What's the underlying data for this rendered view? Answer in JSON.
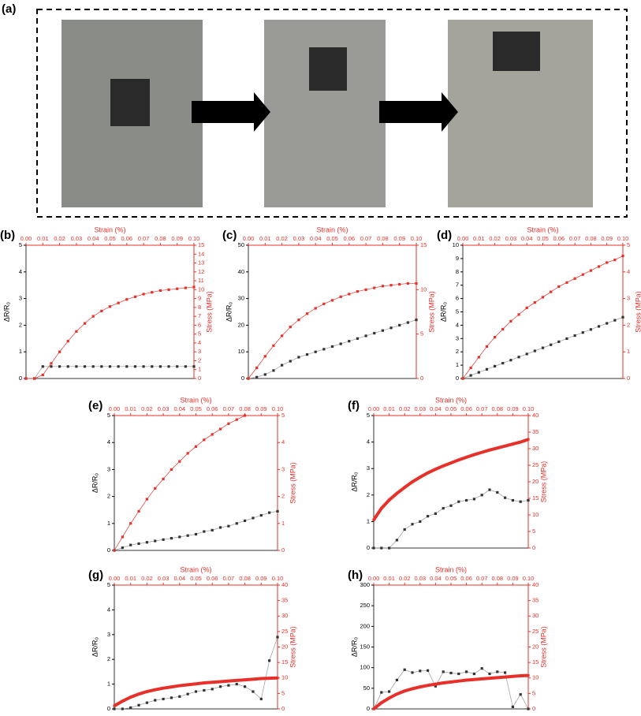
{
  "figure_label": "(a)",
  "chart_data": [
    {
      "type": "line",
      "panel_label": "(b)",
      "xlabel": "Strain (%)",
      "ylabel": "ΔR/R₀",
      "y2label": "Stress (MPa)",
      "x": [
        0,
        0.005,
        0.01,
        0.015,
        0.02,
        0.025,
        0.03,
        0.035,
        0.04,
        0.045,
        0.05,
        0.055,
        0.06,
        0.065,
        0.07,
        0.075,
        0.08,
        0.085,
        0.09,
        0.095,
        0.1
      ],
      "xlim": [
        0,
        0.1
      ],
      "xticks": [
        {
          "value": 0,
          "label": "0.00"
        },
        {
          "value": 0.01,
          "label": "0.01"
        },
        {
          "value": 0.02,
          "label": "0.02"
        },
        {
          "value": 0.03,
          "label": "0.03"
        },
        {
          "value": 0.04,
          "label": "0.04"
        },
        {
          "value": 0.05,
          "label": "0.05"
        },
        {
          "value": 0.06,
          "label": "0.06"
        },
        {
          "value": 0.07,
          "label": "0.07"
        },
        {
          "value": 0.08,
          "label": "0.08"
        },
        {
          "value": 0.09,
          "label": "0.09"
        },
        {
          "value": 0.1,
          "label": "0.10"
        }
      ],
      "ylim": [
        0,
        5
      ],
      "yticks": [
        0,
        1,
        2,
        3,
        4,
        5
      ],
      "y2lim": [
        0,
        15
      ],
      "y2ticks": [
        0,
        1,
        2,
        3,
        4,
        5,
        6,
        7,
        8,
        9,
        10,
        11,
        12,
        13,
        14,
        15
      ],
      "series": [
        {
          "color": "#333333",
          "values": [
            0,
            0,
            0.45,
            0.45,
            0.45,
            0.45,
            0.45,
            0.45,
            0.45,
            0.45,
            0.45,
            0.45,
            0.45,
            0.45,
            0.45,
            0.45,
            0.45,
            0.45,
            0.45,
            0.45,
            0.45
          ]
        },
        {
          "color": "#e8302a",
          "axis": "y2",
          "values": [
            0,
            0,
            0.4,
            1.7,
            3.0,
            4.2,
            5.3,
            6.2,
            7.0,
            7.6,
            8.1,
            8.5,
            8.9,
            9.2,
            9.5,
            9.7,
            9.9,
            10.0,
            10.1,
            10.2,
            10.3
          ]
        }
      ]
    },
    {
      "type": "line",
      "panel_label": "(c)",
      "xlabel": "Strain (%)",
      "ylabel": "ΔR/R₀",
      "y2label": "Stress (MPa)",
      "x": [
        0,
        0.005,
        0.01,
        0.015,
        0.02,
        0.025,
        0.03,
        0.035,
        0.04,
        0.045,
        0.05,
        0.055,
        0.06,
        0.065,
        0.07,
        0.075,
        0.08,
        0.085,
        0.09,
        0.095,
        0.1
      ],
      "xlim": [
        0,
        0.1
      ],
      "xticks": [
        {
          "value": 0,
          "label": "0.00"
        },
        {
          "value": 0.01,
          "label": "0.01"
        },
        {
          "value": 0.02,
          "label": "0.02"
        },
        {
          "value": 0.03,
          "label": "0.03"
        },
        {
          "value": 0.04,
          "label": "0.04"
        },
        {
          "value": 0.05,
          "label": "0.05"
        },
        {
          "value": 0.06,
          "label": "0.06"
        },
        {
          "value": 0.07,
          "label": "0.07"
        },
        {
          "value": 0.08,
          "label": "0.08"
        },
        {
          "value": 0.09,
          "label": "0.09"
        },
        {
          "value": 0.1,
          "label": "0.10"
        }
      ],
      "ylim": [
        0,
        50
      ],
      "yticks": [
        0,
        10,
        20,
        30,
        40,
        50
      ],
      "y2lim": [
        0,
        15
      ],
      "y2ticks": [
        0,
        5,
        10,
        15
      ],
      "series": [
        {
          "color": "#333333",
          "values": [
            0,
            0.5,
            1.5,
            3,
            5,
            6.5,
            8,
            9,
            10,
            11,
            12,
            13,
            14,
            15,
            16,
            17,
            18,
            19,
            20,
            21,
            22
          ]
        },
        {
          "color": "#e8302a",
          "axis": "y2",
          "values": [
            0,
            1.2,
            2.5,
            3.7,
            4.8,
            5.8,
            6.6,
            7.3,
            7.9,
            8.4,
            8.8,
            9.2,
            9.5,
            9.8,
            10.0,
            10.2,
            10.4,
            10.5,
            10.6,
            10.7,
            10.7
          ]
        }
      ]
    },
    {
      "type": "line",
      "panel_label": "(d)",
      "xlabel": "Strain (%)",
      "ylabel": "ΔR/R₀",
      "y2label": "Stress (MPa)",
      "x": [
        0,
        0.005,
        0.01,
        0.015,
        0.02,
        0.025,
        0.03,
        0.035,
        0.04,
        0.045,
        0.05,
        0.055,
        0.06,
        0.065,
        0.07,
        0.075,
        0.08,
        0.085,
        0.09,
        0.095,
        0.1
      ],
      "xlim": [
        0,
        0.1
      ],
      "xticks": [
        {
          "value": 0,
          "label": "0.00"
        },
        {
          "value": 0.01,
          "label": "0.01"
        },
        {
          "value": 0.02,
          "label": "0.02"
        },
        {
          "value": 0.03,
          "label": "0.03"
        },
        {
          "value": 0.04,
          "label": "0.04"
        },
        {
          "value": 0.05,
          "label": "0.05"
        },
        {
          "value": 0.06,
          "label": "0.06"
        },
        {
          "value": 0.07,
          "label": "0.07"
        },
        {
          "value": 0.08,
          "label": "0.08"
        },
        {
          "value": 0.09,
          "label": "0.09"
        },
        {
          "value": 0.1,
          "label": "0.10"
        }
      ],
      "ylim": [
        0,
        10
      ],
      "yticks": [
        0,
        1,
        2,
        3,
        4,
        5,
        6,
        7,
        8,
        9,
        10
      ],
      "y2lim": [
        0,
        5
      ],
      "y2ticks": [
        0,
        1,
        2,
        3,
        4,
        5
      ],
      "series": [
        {
          "color": "#333333",
          "values": [
            0,
            0.23,
            0.46,
            0.69,
            0.92,
            1.15,
            1.38,
            1.61,
            1.84,
            2.07,
            2.3,
            2.53,
            2.76,
            2.99,
            3.22,
            3.45,
            3.68,
            3.91,
            4.14,
            4.37,
            4.6
          ]
        },
        {
          "color": "#e8302a",
          "axis": "y2",
          "values": [
            0,
            0.4,
            0.8,
            1.2,
            1.55,
            1.85,
            2.15,
            2.4,
            2.65,
            2.85,
            3.05,
            3.25,
            3.45,
            3.6,
            3.75,
            3.9,
            4.05,
            4.2,
            4.35,
            4.45,
            4.6
          ]
        }
      ]
    },
    {
      "type": "line",
      "panel_label": "(e)",
      "xlabel": "Strain (%)",
      "ylabel": "ΔR/R₀",
      "y2label": "Stress (MPa)",
      "x": [
        0,
        0.005,
        0.01,
        0.015,
        0.02,
        0.025,
        0.03,
        0.035,
        0.04,
        0.045,
        0.05,
        0.055,
        0.06,
        0.065,
        0.07,
        0.075,
        0.08,
        0.085,
        0.09,
        0.095,
        0.1
      ],
      "xlim": [
        0,
        0.1
      ],
      "xticks": [
        {
          "value": 0,
          "label": "0.00"
        },
        {
          "value": 0.01,
          "label": "0.01"
        },
        {
          "value": 0.02,
          "label": "0.02"
        },
        {
          "value": 0.03,
          "label": "0.03"
        },
        {
          "value": 0.04,
          "label": "0.04"
        },
        {
          "value": 0.05,
          "label": "0.05"
        },
        {
          "value": 0.06,
          "label": "0.06"
        },
        {
          "value": 0.07,
          "label": "0.07"
        },
        {
          "value": 0.08,
          "label": "0.08"
        },
        {
          "value": 0.09,
          "label": "0.09"
        },
        {
          "value": 0.1,
          "label": "0.10"
        }
      ],
      "ylim": [
        0,
        5
      ],
      "yticks": [
        0,
        1,
        2,
        3,
        4,
        5
      ],
      "y2lim": [
        0,
        5
      ],
      "y2ticks": [
        0,
        1,
        2,
        3,
        4,
        5
      ],
      "series": [
        {
          "color": "#333333",
          "values": [
            0,
            0.1,
            0.2,
            0.25,
            0.3,
            0.35,
            0.4,
            0.45,
            0.5,
            0.55,
            0.6,
            0.7,
            0.75,
            0.85,
            0.9,
            1.0,
            1.1,
            1.2,
            1.3,
            1.4,
            1.45
          ]
        },
        {
          "color": "#e8302a",
          "axis": "y2",
          "values": [
            0,
            0.5,
            1.0,
            1.45,
            1.9,
            2.3,
            2.65,
            3.0,
            3.3,
            3.6,
            3.85,
            4.1,
            4.3,
            4.5,
            4.7,
            4.85,
            5.0,
            null,
            null,
            null,
            null
          ]
        }
      ]
    },
    {
      "type": "line",
      "panel_label": "(f)",
      "xlabel": "Strain (%)",
      "ylabel": "ΔR/R₀",
      "y2label": "Stress (MPa)",
      "x": [
        0,
        0.005,
        0.01,
        0.015,
        0.02,
        0.025,
        0.03,
        0.035,
        0.04,
        0.045,
        0.05,
        0.055,
        0.06,
        0.065,
        0.07,
        0.075,
        0.08,
        0.085,
        0.09,
        0.095,
        0.1
      ],
      "xlim": [
        0,
        0.1
      ],
      "xticks": [
        {
          "value": 0,
          "label": "0.00"
        },
        {
          "value": 0.01,
          "label": "0.01"
        },
        {
          "value": 0.02,
          "label": "0.02"
        },
        {
          "value": 0.03,
          "label": "0.03"
        },
        {
          "value": 0.04,
          "label": "0.04"
        },
        {
          "value": 0.05,
          "label": "0.05"
        },
        {
          "value": 0.06,
          "label": "0.06"
        },
        {
          "value": 0.07,
          "label": "0.07"
        },
        {
          "value": 0.08,
          "label": "0.08"
        },
        {
          "value": 0.09,
          "label": "0.09"
        },
        {
          "value": 0.1,
          "label": "0.10"
        }
      ],
      "ylim": [
        0,
        5
      ],
      "yticks": [
        0,
        1,
        2,
        3,
        4,
        5
      ],
      "y2lim": [
        0,
        40
      ],
      "y2ticks": [
        0,
        5,
        10,
        15,
        20,
        25,
        30,
        35,
        40
      ],
      "series": [
        {
          "color": "#333333",
          "values": [
            0,
            0,
            0,
            0.3,
            0.7,
            0.9,
            1.0,
            1.2,
            1.3,
            1.5,
            1.6,
            1.75,
            1.8,
            1.85,
            2.0,
            2.2,
            2.1,
            1.9,
            1.8,
            1.75,
            1.8
          ]
        },
        {
          "color": "#e8302a",
          "axis": "y2",
          "values": [
            8.5,
            12,
            14.5,
            16.5,
            18.3,
            20,
            21.4,
            22.7,
            23.8,
            24.8,
            25.7,
            26.6,
            27.4,
            28.2,
            28.9,
            29.6,
            30.2,
            30.8,
            31.4,
            32,
            32.8
          ]
        }
      ]
    },
    {
      "type": "line",
      "panel_label": "(g)",
      "xlabel": "Strain (%)",
      "ylabel": "ΔR/R₀",
      "y2label": "Stress (MPa)",
      "x": [
        0,
        0.005,
        0.01,
        0.015,
        0.02,
        0.025,
        0.03,
        0.035,
        0.04,
        0.045,
        0.05,
        0.055,
        0.06,
        0.065,
        0.07,
        0.075,
        0.08,
        0.085,
        0.09,
        0.095,
        0.1
      ],
      "xlim": [
        0,
        0.1
      ],
      "xticks": [
        {
          "value": 0,
          "label": "0.00"
        },
        {
          "value": 0.01,
          "label": "0.01"
        },
        {
          "value": 0.02,
          "label": "0.02"
        },
        {
          "value": 0.03,
          "label": "0.03"
        },
        {
          "value": 0.04,
          "label": "0.04"
        },
        {
          "value": 0.05,
          "label": "0.05"
        },
        {
          "value": 0.06,
          "label": "0.06"
        },
        {
          "value": 0.07,
          "label": "0.07"
        },
        {
          "value": 0.08,
          "label": "0.08"
        },
        {
          "value": 0.09,
          "label": "0.09"
        },
        {
          "value": 0.1,
          "label": "0.10"
        }
      ],
      "ylim": [
        0,
        5
      ],
      "yticks": [
        0,
        1,
        2,
        3,
        4,
        5
      ],
      "y2lim": [
        0,
        40
      ],
      "y2ticks": [
        0,
        5,
        10,
        15,
        20,
        25,
        30,
        35,
        40
      ],
      "series": [
        {
          "color": "#333333",
          "values": [
            0,
            0,
            0.05,
            0.15,
            0.25,
            0.35,
            0.4,
            0.45,
            0.5,
            0.6,
            0.7,
            0.75,
            0.8,
            0.9,
            0.95,
            1.0,
            0.9,
            0.7,
            0.4,
            1.95,
            2.9
          ]
        },
        {
          "color": "#e8302a",
          "axis": "y2",
          "values": [
            1,
            2.5,
            3.8,
            4.8,
            5.6,
            6.2,
            6.7,
            7.1,
            7.5,
            7.8,
            8.1,
            8.4,
            8.6,
            8.8,
            9.0,
            9.2,
            9.4,
            9.6,
            9.8,
            9.9,
            10
          ]
        }
      ]
    },
    {
      "type": "line",
      "panel_label": "(h)",
      "xlabel": "Strain (%)",
      "ylabel": "ΔR/R₀",
      "y2label": "Stress (MPa)",
      "x": [
        0,
        0.005,
        0.01,
        0.015,
        0.02,
        0.025,
        0.03,
        0.035,
        0.04,
        0.045,
        0.05,
        0.055,
        0.06,
        0.065,
        0.07,
        0.075,
        0.08,
        0.085,
        0.09,
        0.095,
        0.1
      ],
      "xlim": [
        0,
        0.1
      ],
      "xticks": [
        {
          "value": 0,
          "label": "0.00"
        },
        {
          "value": 0.01,
          "label": "0.01"
        },
        {
          "value": 0.02,
          "label": "0.02"
        },
        {
          "value": 0.03,
          "label": "0.03"
        },
        {
          "value": 0.04,
          "label": "0.04"
        },
        {
          "value": 0.05,
          "label": "0.05"
        },
        {
          "value": 0.06,
          "label": "0.06"
        },
        {
          "value": 0.07,
          "label": "0.07"
        },
        {
          "value": 0.08,
          "label": "0.08"
        },
        {
          "value": 0.09,
          "label": "0.09"
        },
        {
          "value": 0.1,
          "label": "0.10"
        }
      ],
      "ylim": [
        0,
        300
      ],
      "yticks": [
        0,
        50,
        100,
        150,
        200,
        250,
        300
      ],
      "y2lim": [
        0,
        40
      ],
      "y2ticks": [
        0,
        5,
        10,
        15,
        20,
        25,
        30,
        35,
        40
      ],
      "series": [
        {
          "color": "#333333",
          "values": [
            0,
            40,
            42,
            70,
            95,
            88,
            92,
            93,
            55,
            90,
            87,
            85,
            90,
            85,
            98,
            85,
            90,
            88,
            5,
            35,
            0
          ]
        },
        {
          "color": "#e8302a",
          "axis": "y2",
          "values": [
            0,
            2,
            3.5,
            4.8,
            5.8,
            6.5,
            7.1,
            7.6,
            8,
            8.4,
            8.7,
            9,
            9.3,
            9.5,
            9.7,
            9.9,
            10.1,
            10.3,
            10.5,
            10.7,
            10.8
          ]
        }
      ]
    }
  ]
}
